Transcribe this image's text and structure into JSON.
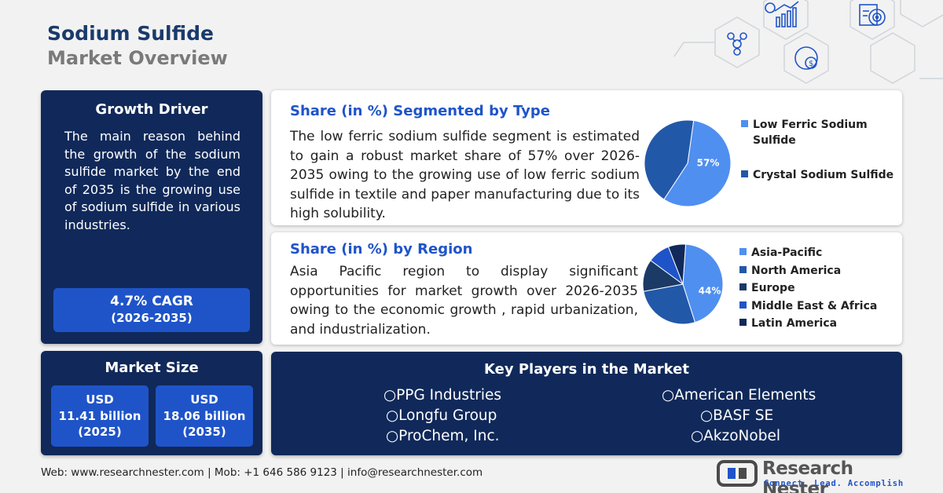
{
  "title": {
    "line1": "Sodium Sulfide",
    "line2": "Market Overview"
  },
  "growth_driver": {
    "heading": "Growth Driver",
    "text": "The main reason behind the growth of the sodium sulfide market by the end of 2035 is the growing use of sodium sulfide in various industries.",
    "cagr": "4.7% CAGR",
    "cagr_period": "(2026-2035)"
  },
  "market_size": {
    "heading": "Market Size",
    "box1": {
      "currency": "USD",
      "value": "11.41 billion",
      "year": "(2025)"
    },
    "box2": {
      "currency": "USD",
      "value": "18.06 billion",
      "year": "(2035)"
    }
  },
  "segment_type": {
    "heading": "Share (in %) Segmented by Type",
    "text": "The low ferric sodium sulfide segment is estimated to gain a robust market share of 57% over 2026-2035 owing to the growing use of low ferric sodium sulfide in textile and paper manufacturing due to its high solubility.",
    "pie_label": "57%",
    "legend": [
      {
        "label": "Low Ferric Sodium",
        "label2": "Sulfide",
        "color": "#4f8ff0"
      },
      {
        "label": "Crystal Sodium Sulfide",
        "color": "#2258a8"
      }
    ]
  },
  "segment_region": {
    "heading": "Share (in %) by Region",
    "text": "Asia Pacific region to display significant opportunities for market growth over 2026-2035 owing to the economic growth , rapid urbanization, and industrialization.",
    "pie_label": "44%",
    "legend": [
      {
        "label": "Asia-Pacific",
        "color": "#4f8ff0"
      },
      {
        "label": "North America",
        "color": "#2258a8"
      },
      {
        "label": "Europe",
        "color": "#1b3a66"
      },
      {
        "label": "Middle East & Africa",
        "color": "#1f54c9"
      },
      {
        "label": "Latin America",
        "color": "#10295a"
      }
    ]
  },
  "chart_data": [
    {
      "type": "pie",
      "categories": [
        "Low Ferric Sodium Sulfide",
        "Crystal Sodium Sulfide"
      ],
      "values": [
        57,
        43
      ]
    },
    {
      "type": "pie",
      "categories": [
        "Asia-Pacific",
        "North America",
        "Europe",
        "Middle East & Africa",
        "Latin America"
      ],
      "values": [
        44,
        27,
        13,
        9,
        7
      ]
    }
  ],
  "key_players": {
    "heading": "Key Players in the Market",
    "left": [
      "○PPG Industries",
      "○Longfu Group",
      "○ProChem, Inc."
    ],
    "right": [
      "○American Elements",
      "○BASF SE",
      "○AkzoNobel"
    ]
  },
  "footer": {
    "contact": "Web: www.researchnester.com | Mob: +1 646 586 9123 | info@researchnester.com"
  },
  "logo": {
    "brand": "Research Nester",
    "tagline": "Connect. Lead. Accomplish"
  },
  "colors": {
    "navy": "#10295a",
    "accent_blue": "#1f54c9",
    "light_blue": "#4f8ff0"
  }
}
